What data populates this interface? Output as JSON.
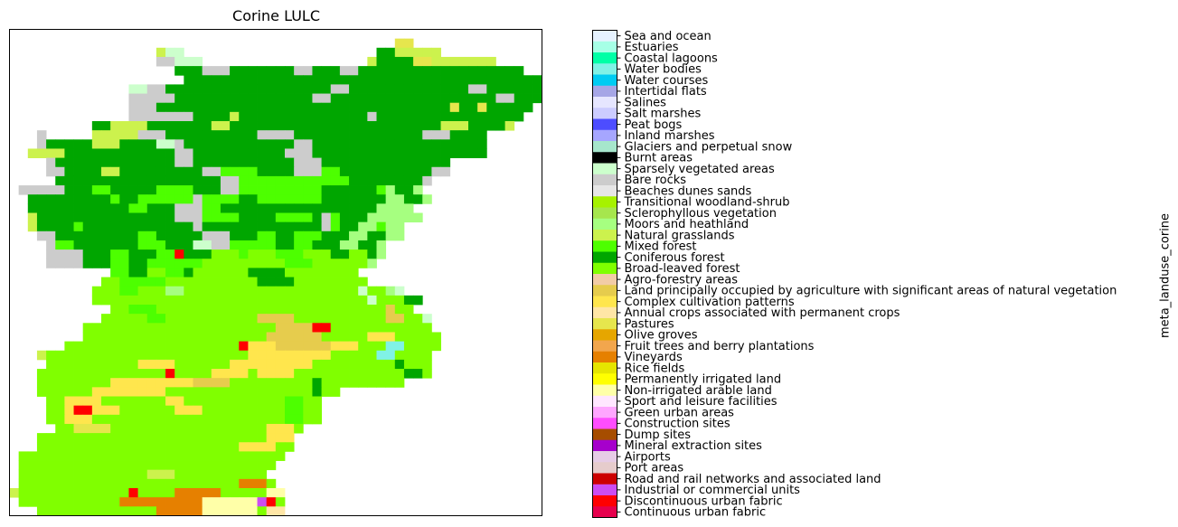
{
  "chart_data": {
    "type": "heatmap",
    "title": "Corine LULC",
    "colorbar_label": "meta_landuse_corine",
    "grid_shown": false,
    "classes": [
      {
        "label": "Sea and ocean",
        "color": "#e6f2ff"
      },
      {
        "label": "Estuaries",
        "color": "#a6ffe6"
      },
      {
        "label": "Coastal lagoons",
        "color": "#00ffa6"
      },
      {
        "label": "Water bodies",
        "color": "#80f2e6"
      },
      {
        "label": "Water courses",
        "color": "#00ccf2"
      },
      {
        "label": "Intertidal flats",
        "color": "#a6a6e6"
      },
      {
        "label": "Salines",
        "color": "#e6e6ff"
      },
      {
        "label": "Salt marshes",
        "color": "#ccccff"
      },
      {
        "label": "Peat bogs",
        "color": "#4d4dff"
      },
      {
        "label": "Inland marshes",
        "color": "#a6a6ff"
      },
      {
        "label": "Glaciers and perpetual snow",
        "color": "#a6e6cc"
      },
      {
        "label": "Burnt areas",
        "color": "#000000"
      },
      {
        "label": "Sparsely vegetated areas",
        "color": "#ccffcc"
      },
      {
        "label": "Bare rocks",
        "color": "#cccccc"
      },
      {
        "label": "Beaches dunes sands",
        "color": "#e6e6e6"
      },
      {
        "label": "Transitional woodland-shrub",
        "color": "#a6f200"
      },
      {
        "label": "Sclerophyllous vegetation",
        "color": "#a6e64d"
      },
      {
        "label": "Moors and heathland",
        "color": "#a6ff80"
      },
      {
        "label": "Natural grasslands",
        "color": "#ccf24d"
      },
      {
        "label": "Mixed forest",
        "color": "#4dff00"
      },
      {
        "label": "Coniferous forest",
        "color": "#00a600"
      },
      {
        "label": "Broad-leaved forest",
        "color": "#80ff00"
      },
      {
        "label": "Agro-forestry areas",
        "color": "#f2cca6"
      },
      {
        "label": "Land principally occupied by agriculture with significant areas of natural vegetation",
        "color": "#e6cc4d"
      },
      {
        "label": "Complex cultivation patterns",
        "color": "#ffe64d"
      },
      {
        "label": "Annual crops associated with permanent crops",
        "color": "#ffe6a6"
      },
      {
        "label": "Pastures",
        "color": "#e6e64d"
      },
      {
        "label": "Olive groves",
        "color": "#e6a600"
      },
      {
        "label": "Fruit trees and berry plantations",
        "color": "#f2a64d"
      },
      {
        "label": "Vineyards",
        "color": "#e68000"
      },
      {
        "label": "Rice fields",
        "color": "#e6e600"
      },
      {
        "label": "Permanently irrigated land",
        "color": "#ffff00"
      },
      {
        "label": "Non-irrigated arable land",
        "color": "#ffffa8"
      },
      {
        "label": "Sport and leisure facilities",
        "color": "#ffe6ff"
      },
      {
        "label": "Green urban areas",
        "color": "#ffa6ff"
      },
      {
        "label": "Construction sites",
        "color": "#ff4dff"
      },
      {
        "label": "Dump sites",
        "color": "#a64d00"
      },
      {
        "label": "Mineral extraction sites",
        "color": "#a600cc"
      },
      {
        "label": "Airports",
        "color": "#e6cce6"
      },
      {
        "label": "Port areas",
        "color": "#e6cccc"
      },
      {
        "label": "Road and rail networks and associated land",
        "color": "#cc0000"
      },
      {
        "label": "Industrial or commercial units",
        "color": "#cc4df2"
      },
      {
        "label": "Discontinuous urban fabric",
        "color": "#ff0000"
      },
      {
        "label": "Continuous urban fabric",
        "color": "#e6004d"
      }
    ],
    "grid_key": {
      "B": "Broad-leaved forest",
      "C": "Coniferous forest",
      "M": "Mixed forest",
      "R": "Bare rocks",
      "G": "Natural grasslands",
      "H": "Moors and heathland",
      "P": "Complex cultivation patterns",
      "L": "Land principally occupied by agriculture with significant areas of natural vegetation",
      "U": "Discontinuous urban fabric",
      "V": "Vineyards",
      "N": "Non-irrigated arable land",
      "S": "Sparsely vegetated areas",
      "W": "Water bodies",
      "Y": "Pastures",
      "I": "Industrial or commercial units",
      "E": "Beaches dunes sands",
      "A": "Annual crops associated with permanent crops",
      "O": "Olive groves"
    },
    "grid": [
      "..........................................................",
      "..........................................YY..............",
      "................GSS.....................CCGGGGG...........",
      "................RRSSS..................GCCCCYYGGGGGGG......",
      "..................CCCRRRCCCCCCCRRCCCRRCCCCCCCCCCCCCCCCCC..",
      "...................CCCCCCCCCCCCCCCCCCCCCCCCCCCCCCCCCCCCCCC.",
      ".............SSRRCCCCCCCCCCCCCCCCCCRRCCCCCCCCCCCCCRRCCCCCC.",
      ".............RRRRRCCCCCCCCCCCCCCCRRCCCCCCCCCCCCCCCCCCRRCCC.",
      ".............RRRCCCCCCCCCCCCCCCCCCCCCCCCCCCCCCCCYCCYCCCCC..",
      ".............RRRRRRRCCCCGCCCCCCCCCCCCCCRCCCCCCCCCCCCCCCC...",
      ".........CCGGGGCCCCCCCGGCCCCCCCCCCCCCCCCCCCCCCCGGGCCCCG....",
      "...R.....GGGGGRRRCCCCCCCCCCRRRRCCCCCCCCCCCCCCRRRCCCC.......",
      "...RCCCCCGGGCCCCSSRCCCCCCCCCCCCRRCCCCCCCCCCCCCCCCCCC.......",
      "..GGGGCCCCCCCCCCCCRRCCCCCCCCCCRRRCCCCCCCCCCCCCCCCCCC.......",
      "....RCCCCCCCCCCCCCRRCCCCCCCCCCCRRRCCCCCCCCCCCCCC...........",
      "....RRCCCCGGCCCCCCCCCRRMMMMCCCCRRRMMCCCCCCCCCCRR...........",
      ".....CCCCCCCCCCCCCCCCCCRRMMMMMMMMMMMMCCCCCCCCR.............",
      ".RRRRRCCCMMCCCCCMMMMCCCRRMMMMMMMMMCCCCCCMHCCH..............",
      "..CCCCCCCCCMCCMMMMMMRMMMMCCMMMMMMMCCCCCCCHHCCH.............",
      "..CCCCCCCCCCCMMCCCRRRMMCCCCCCCCCCCCCCCCCHHHH...............",
      "..GCCCCCCCCCCCCCCCRRRMMMMCCCCMMMMCRMCCCHHHHHH..............",
      "..GCCCCMCCCCCCCCCCCCRCCCCCCCCCCCCCRMCCHHMHH................",
      "...RRCCCCCCCCCMMCCCCCRRRCCCMMCCMMMCCCHHCCHH................",
      "....RMMCCCCCCCMMMCCCSSRRMMMMMCCMMCCCHHCCH..................",
      "....RRRRCCCMMCCCMMUCCCBBBMBBBMMMBBBCCBBCH..................",
      "....RRRRCCCMMCCMMMMMMBBBBBBBBBMMMBBBBBBH...................",
      "...........MMCCBBMMCBBBBBBCCCCBBBBBBBB.....................",
      "..........BBMMMMMBBBBBBBBBBCCCCBBBBBBBB....................",
      ".........BBBMMBBBHHBBBBBBBBBBBBBBBBBBBSBBHS................",
      ".........BBBBBBBBBBBBBBBBBBBBBBBBBBBBBBSBBBCC..............",
      "...........BBMMMBBBBBBBBBBBBBBBBBBBBBBBBBLBB...............",
      "..........BBBBBMMBBBBBBBBBBLLLLBBBBBBBBBBLLBBS.............",
      "........BBBBBBBBBBBBBBBBBBBBBLLLLUUBBBBBBBBBBB.............",
      "........BBBBBBBBBBBBBBBBBBBBLLLLLLBBBBBPPPBBBBB............",
      "......BBBBBBBBBBBBBBBBBBBUPPPLLLLLLPPPBBBWWBBBB............",
      "...GBBBBBBBBBBBBBBBBBBBBBBPPPPPPPPPBBBBBWWBBBB.............",
      "....BBBBBBBBBBPPPPBBBBBBPPPPPPPPPBBBBBBBBBCBBB.............",
      "...BBBBBBBBBBBBBBUBBBBPPPPBPPPPBBBBBBBBBBBBCCB.............",
      "...BBBBBBBBPPPPPPPPPLLLLBBBBBBBBBCBBBBBBBBB................",
      "...BBBBBBPPPPPPPPBBBBBBBBBBBBBBBBCBB.......................",
      "....BBPPPPBBBBBBBPPBBBBBBBBBBBMMBB.........................",
      "....BBPUUPPPBBBBBBPPPBBBBBBBBBMMBB.........................",
      "....BBPPPBBBBBBBBBBBBBBBBBBBBBMMBB.........................",
      ".....BBYYYYBBBBBBBBBBBBBBBBBPPPB...........................",
      "...BBBBBBBBBBBBBBBBBBBBBBBBBPPP............................",
      "...BBBBBBBBBBBBBBBBBBBBBBPPPPBB............................",
      ".BBBBBBBBBBBBBBBBBBBBBBBBBBBBB.............................",
      ".BBBBBBBBBBBBBBBBBBBBBBBBBBBB..............................",
      ".BBBBBBBBBBBBBBGGGBBBBBBBBBB...............................",
      ".BBBBBBBBBBBBBBBBBBBBBBBBVVVB..............................",
      "GBBBBBBBBBBBBUBBBBVVVVVBBBBBNN.............................",
      ".BBBBBBBBBBBVVVVVVVVVNNNNNNIUB.............................",
      "...BBBBBBBBBBBBBVVVVVNNNNNNBAA.............................",
      "....BBBBPPPBBBBBBBBBBNNNNNNBY..............................",
      "....................BBBNNNNNB..............................",
      "....................BBBEEEEBB..............................",
      "....................BBBBBBBB..............................."
    ]
  }
}
